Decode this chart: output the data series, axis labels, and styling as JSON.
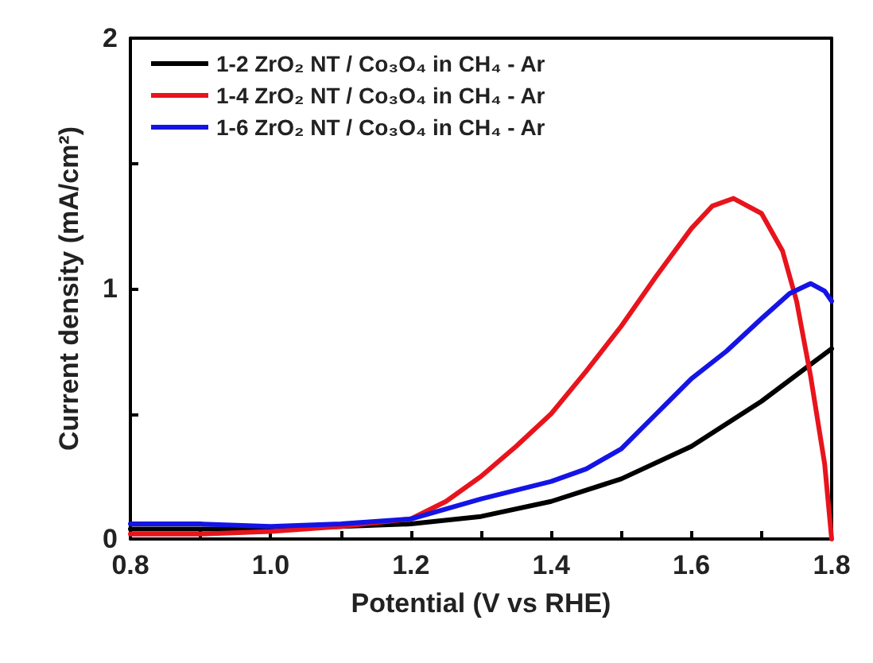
{
  "chart_data": {
    "type": "line",
    "xlabel": "Potential (V vs RHE)",
    "ylabel": "Current density (mA/cm²)",
    "xlim": [
      0.8,
      1.8
    ],
    "xticks": [
      0.8,
      {
        "value": 0.9,
        "label": null
      },
      "1.0",
      {
        "value": 1.1,
        "label": null
      },
      1.2,
      {
        "value": 1.3,
        "label": null
      },
      1.4,
      {
        "value": 1.5,
        "label": null
      },
      1.6,
      {
        "value": 1.7,
        "label": null
      },
      1.8
    ],
    "ylim": [
      0,
      2
    ],
    "yticks": [
      0,
      {
        "value": 0.5,
        "label": null
      },
      1,
      {
        "value": 1.5,
        "label": null
      },
      2
    ],
    "legend": "top left",
    "grid": false,
    "series": [
      {
        "name": "1-2 ZrO₂ NT / Co₃O₄ in CH₄ - Ar",
        "color": "#000000",
        "x": [
          0.8,
          0.9,
          1.0,
          1.1,
          1.2,
          1.3,
          1.4,
          1.5,
          1.6,
          1.7,
          1.8
        ],
        "values": [
          0.04,
          0.04,
          0.04,
          0.05,
          0.06,
          0.09,
          0.15,
          0.24,
          0.37,
          0.55,
          0.76
        ]
      },
      {
        "name": "1-4 ZrO₂ NT / Co₃O₄ in CH₄ - Ar",
        "color": "#e8141c",
        "x": [
          0.8,
          0.9,
          1.0,
          1.1,
          1.2,
          1.25,
          1.3,
          1.35,
          1.4,
          1.45,
          1.5,
          1.55,
          1.6,
          1.63,
          1.66,
          1.7,
          1.73,
          1.75,
          1.77,
          1.79,
          1.8
        ],
        "values": [
          0.02,
          0.02,
          0.03,
          0.05,
          0.08,
          0.15,
          0.25,
          0.37,
          0.5,
          0.67,
          0.85,
          1.05,
          1.24,
          1.33,
          1.36,
          1.3,
          1.15,
          0.95,
          0.65,
          0.3,
          0.0
        ]
      },
      {
        "name": "1-6 ZrO₂ NT / Co₃O₄ in CH₄ - Ar",
        "color": "#1414e6",
        "x": [
          0.8,
          0.9,
          1.0,
          1.1,
          1.2,
          1.3,
          1.4,
          1.45,
          1.5,
          1.55,
          1.6,
          1.65,
          1.7,
          1.74,
          1.77,
          1.79,
          1.8
        ],
        "values": [
          0.06,
          0.06,
          0.05,
          0.06,
          0.08,
          0.16,
          0.23,
          0.28,
          0.36,
          0.5,
          0.64,
          0.75,
          0.88,
          0.98,
          1.02,
          0.99,
          0.95
        ]
      }
    ]
  }
}
